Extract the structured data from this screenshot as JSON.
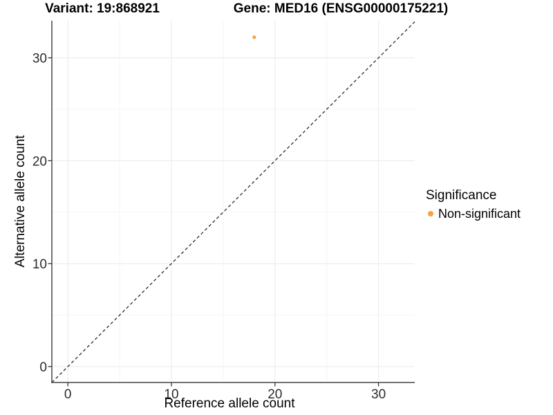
{
  "figure": {
    "title_variant": "Variant: 19:868921",
    "title_gene": "Gene: MED16 (ENSG00000175221)"
  },
  "chart_data": {
    "type": "scatter",
    "title": "Variant: 19:868921   Gene: MED16 (ENSG00000175221)",
    "xlabel": "Reference allele count",
    "ylabel": "Alternative allele count",
    "xlim": [
      -1.55,
      33.5
    ],
    "ylim": [
      -1.55,
      33.6
    ],
    "xticks": [
      0,
      10,
      20,
      30
    ],
    "yticks": [
      0,
      10,
      20,
      30
    ],
    "minor_xticks": [
      5,
      15,
      25
    ],
    "minor_yticks": [
      5,
      15,
      25
    ],
    "grid": true,
    "points": [
      {
        "x": 18,
        "y": 32,
        "series": "Non-significant"
      }
    ],
    "reference_line": {
      "type": "identity",
      "style": "dashed",
      "equation": "y = x"
    },
    "legend": {
      "title": "Significance",
      "position": "right",
      "items": [
        {
          "label": "Non-significant",
          "color": "#FAA23C"
        }
      ]
    },
    "colors": {
      "point": "#FAA23C",
      "grid_major": "#ECECEC",
      "grid_minor": "#F5F5F5",
      "axis_line": "#454545",
      "tick_mark": "#333333",
      "tick_label": "#2B2B2B",
      "reference_line": "#1A1A1A",
      "text": "#000000",
      "background": "#FFFFFF"
    }
  }
}
